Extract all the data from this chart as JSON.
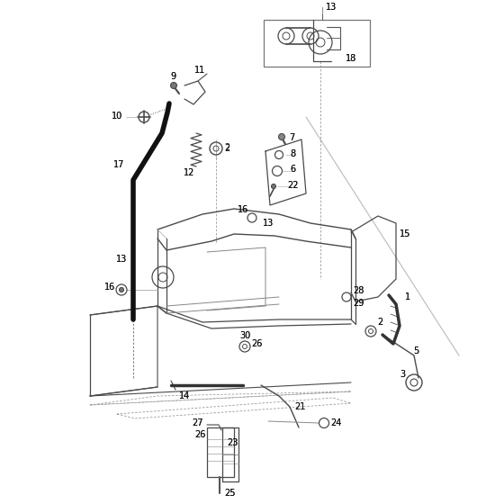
{
  "bg_color": "#ffffff",
  "lc": "#4a4a4a",
  "dark": "#222222",
  "gray": "#888888",
  "lgray": "#aaaaaa",
  "lbl": "#111111",
  "fs": 7.0
}
